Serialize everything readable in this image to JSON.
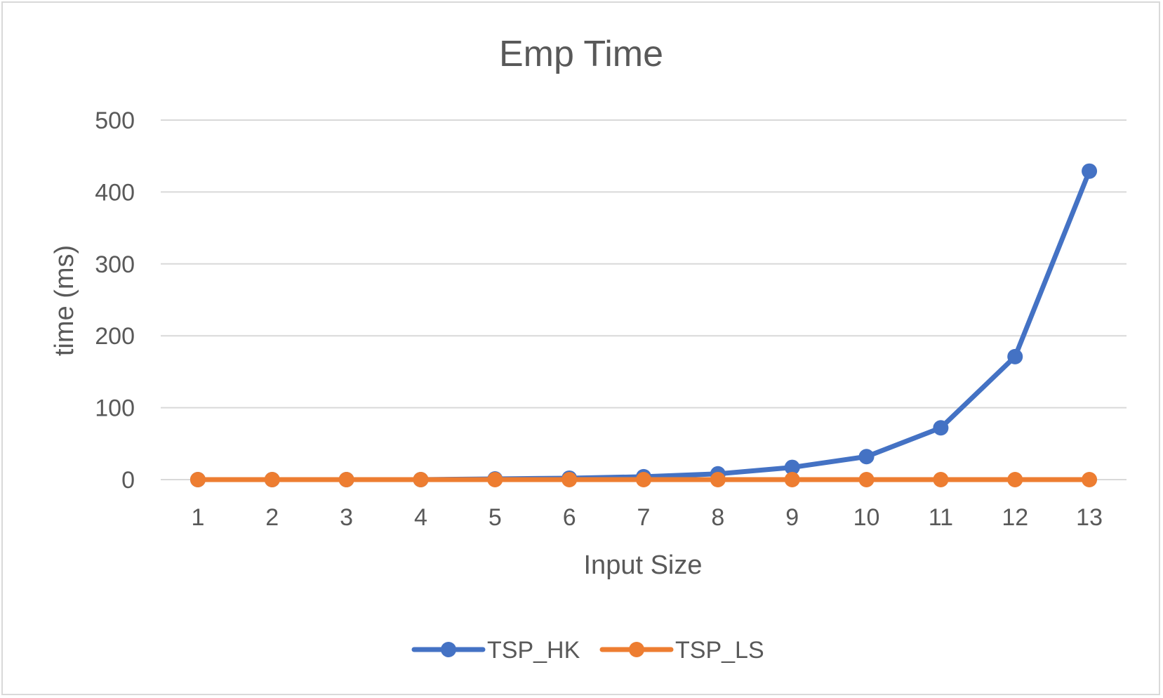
{
  "chart_data": {
    "type": "line",
    "title": "Emp Time",
    "xlabel": "Input Size",
    "ylabel": "time (ms)",
    "categories": [
      "1",
      "2",
      "3",
      "4",
      "5",
      "6",
      "7",
      "8",
      "9",
      "10",
      "11",
      "12",
      "13"
    ],
    "ylim": [
      0,
      500
    ],
    "yticks": [
      "0",
      "100",
      "200",
      "300",
      "400",
      "500"
    ],
    "grid": true,
    "legend_position": "bottom",
    "series": [
      {
        "name": "TSP_HK",
        "color": "#4472c4",
        "values": [
          0,
          0,
          0,
          0,
          1,
          2,
          4,
          8,
          17,
          32,
          72,
          171,
          429
        ]
      },
      {
        "name": "TSP_LS",
        "color": "#ed7d31",
        "values": [
          0,
          0,
          0,
          0,
          0,
          0,
          0,
          0,
          0,
          0,
          0,
          0,
          0
        ]
      }
    ]
  }
}
